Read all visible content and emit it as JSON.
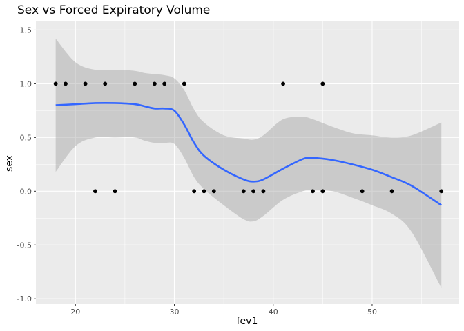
{
  "chart_data": {
    "type": "scatter",
    "title": "Sex vs Forced Expiratory Volume",
    "xlabel": "fev1",
    "ylabel": "sex",
    "xlim": [
      16.0,
      58.8
    ],
    "ylim": [
      -1.05,
      1.58
    ],
    "x_ticks": [
      20,
      30,
      40,
      50
    ],
    "x_tick_labels": [
      "20",
      "30",
      "40",
      "50"
    ],
    "y_ticks": [
      -1.0,
      -0.5,
      0.0,
      0.5,
      1.0,
      1.5
    ],
    "y_tick_labels": [
      "-1.0",
      "-0.5",
      "0.0",
      "0.5",
      "1.0",
      "1.5"
    ],
    "grid": true,
    "background": "#ebebeb",
    "points": [
      {
        "x": 18,
        "y": 1
      },
      {
        "x": 19,
        "y": 1
      },
      {
        "x": 21,
        "y": 1
      },
      {
        "x": 23,
        "y": 1
      },
      {
        "x": 26,
        "y": 1
      },
      {
        "x": 28,
        "y": 1
      },
      {
        "x": 29,
        "y": 1
      },
      {
        "x": 31,
        "y": 1
      },
      {
        "x": 41,
        "y": 1
      },
      {
        "x": 45,
        "y": 1
      },
      {
        "x": 22,
        "y": 0
      },
      {
        "x": 24,
        "y": 0
      },
      {
        "x": 32,
        "y": 0
      },
      {
        "x": 33,
        "y": 0
      },
      {
        "x": 34,
        "y": 0
      },
      {
        "x": 37,
        "y": 0
      },
      {
        "x": 38,
        "y": 0
      },
      {
        "x": 39,
        "y": 0
      },
      {
        "x": 44,
        "y": 0
      },
      {
        "x": 45,
        "y": 0
      },
      {
        "x": 49,
        "y": 0
      },
      {
        "x": 52,
        "y": 0
      },
      {
        "x": 57,
        "y": 0
      }
    ],
    "smooth": {
      "x": [
        18,
        20,
        22,
        24,
        26,
        27,
        28,
        29,
        30,
        31,
        32,
        33,
        35,
        37,
        38,
        39,
        41,
        43,
        44,
        46,
        48,
        50,
        52,
        54,
        57
      ],
      "y": [
        0.8,
        0.81,
        0.82,
        0.82,
        0.81,
        0.79,
        0.77,
        0.77,
        0.75,
        0.62,
        0.45,
        0.33,
        0.2,
        0.11,
        0.09,
        0.11,
        0.21,
        0.3,
        0.31,
        0.29,
        0.25,
        0.2,
        0.13,
        0.05,
        -0.13
      ],
      "upper": [
        1.42,
        1.2,
        1.13,
        1.13,
        1.12,
        1.1,
        1.09,
        1.08,
        1.05,
        0.94,
        0.76,
        0.64,
        0.52,
        0.49,
        0.48,
        0.52,
        0.67,
        0.69,
        0.67,
        0.6,
        0.54,
        0.52,
        0.5,
        0.52,
        0.64
      ],
      "lower": [
        0.18,
        0.42,
        0.5,
        0.5,
        0.5,
        0.47,
        0.45,
        0.45,
        0.44,
        0.31,
        0.13,
        0.02,
        -0.13,
        -0.26,
        -0.28,
        -0.23,
        -0.08,
        0.0,
        0.01,
        0.0,
        -0.06,
        -0.13,
        -0.21,
        -0.38,
        -0.9
      ],
      "line_color": "#3366ff",
      "band_color": "#999999"
    },
    "point_color": "#000000"
  }
}
